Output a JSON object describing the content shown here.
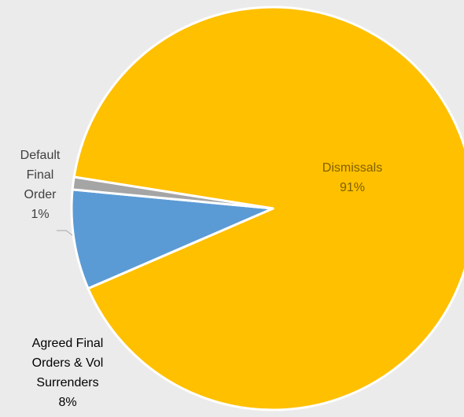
{
  "chart_data": {
    "type": "pie",
    "title": "",
    "start_angle_deg": -171,
    "direction": "clockwise",
    "slices": [
      {
        "label_lines": [
          "Dismissals"
        ],
        "percent_label": "91%",
        "value": 91,
        "color": "#ffc000",
        "label_color": "#7f6000"
      },
      {
        "label_lines": [
          "Agreed Final",
          "Orders & Vol",
          "Surrenders"
        ],
        "percent_label": "8%",
        "value": 8,
        "color": "#5b9bd5",
        "label_color": "#000000"
      },
      {
        "label_lines": [
          "Default",
          "Final",
          "Order"
        ],
        "percent_label": "1%",
        "value": 1,
        "color": "#a5a5a5",
        "label_color": "#404040"
      }
    ],
    "legend": "none",
    "background": "#ebebeb"
  }
}
